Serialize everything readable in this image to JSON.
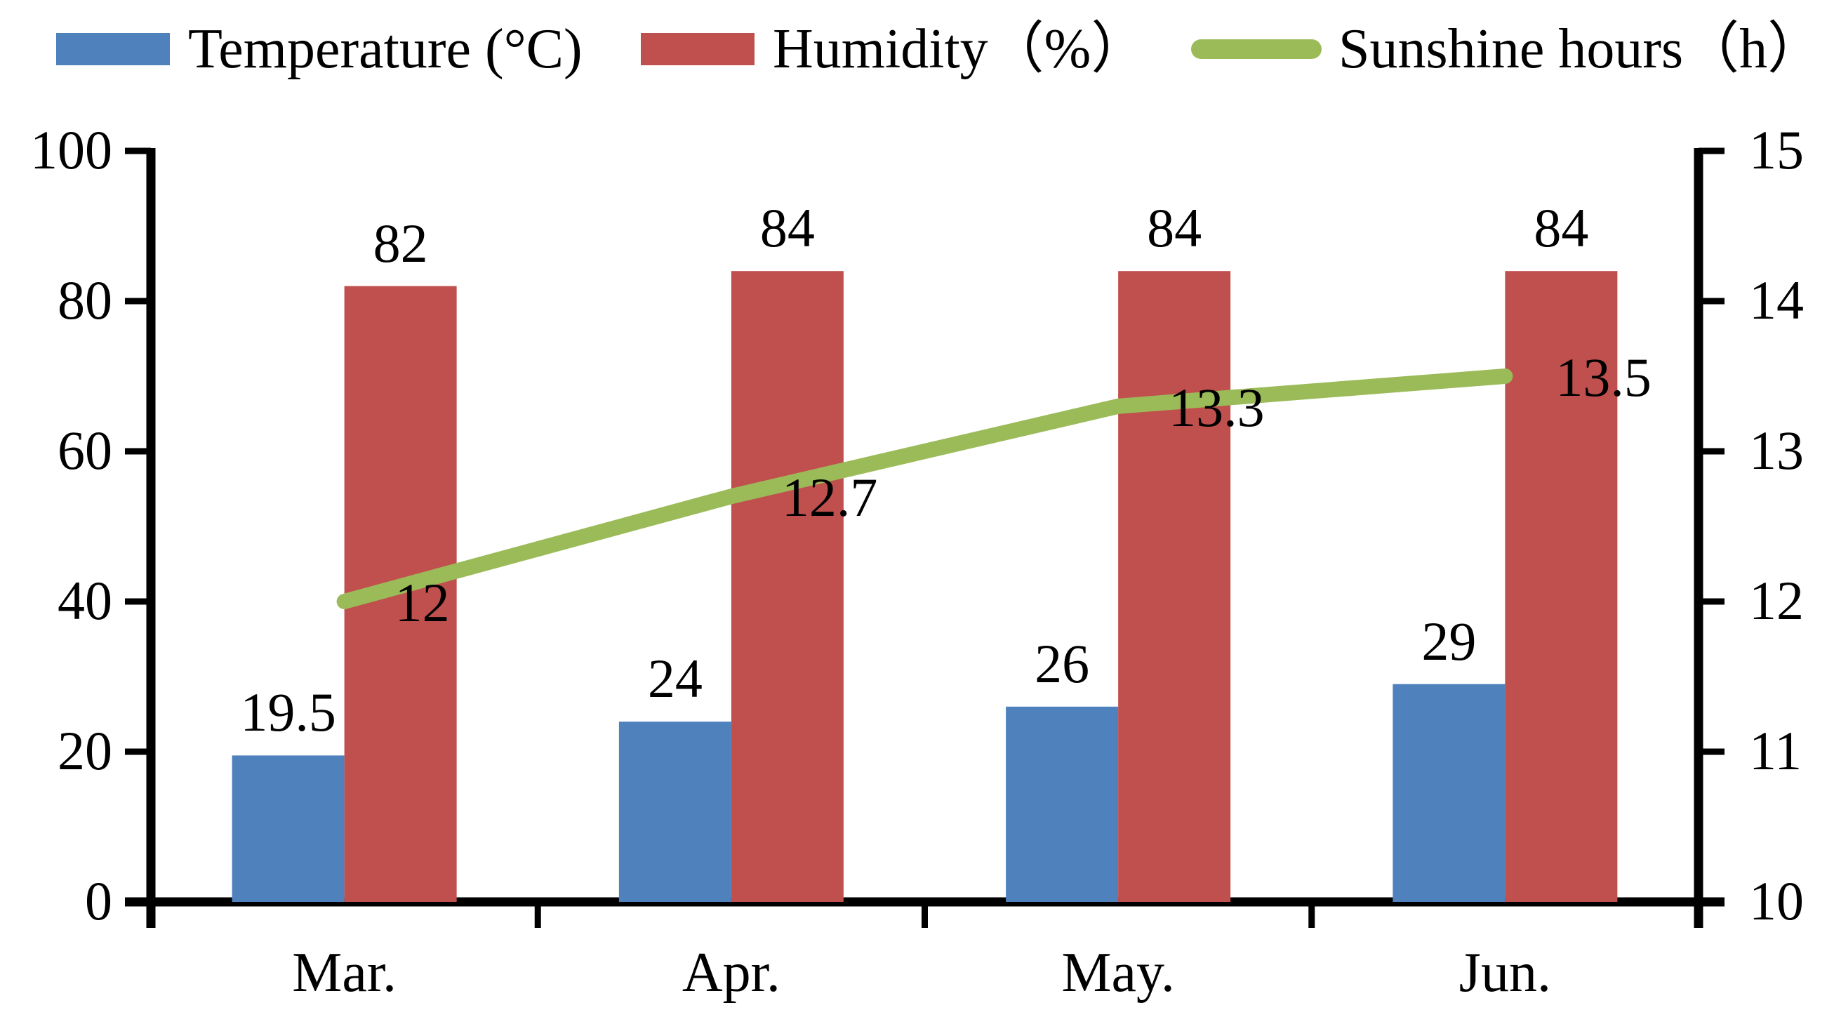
{
  "chart_data": {
    "type": "combo-bar-line",
    "title": "",
    "categories": [
      "Mar.",
      "Apr.",
      "May.",
      "Jun."
    ],
    "series": [
      {
        "name": "Temperature (°C)",
        "type": "bar",
        "axis": "left",
        "color": "#4F81BD",
        "values": [
          19.5,
          24,
          26,
          29
        ],
        "labels": [
          "19.5",
          "24",
          "26",
          "29"
        ]
      },
      {
        "name": "Humidity（%）",
        "type": "bar",
        "axis": "left",
        "color": "#C0504D",
        "values": [
          82,
          84,
          84,
          84
        ],
        "labels": [
          "82",
          "84",
          "84",
          "84"
        ]
      },
      {
        "name": "Sunshine hours（h）",
        "type": "line",
        "axis": "right",
        "color": "#9BBB59",
        "values": [
          12,
          12.7,
          13.3,
          13.5
        ],
        "labels": [
          "12",
          "12.7",
          "13.3",
          "13.5"
        ]
      }
    ],
    "left_axis": {
      "min": 0,
      "max": 100,
      "tick_labels": [
        "0",
        "20",
        "40",
        "60",
        "80",
        "100"
      ]
    },
    "right_axis": {
      "min": 10,
      "max": 15,
      "tick_labels": [
        "10",
        "11",
        "12",
        "13",
        "14",
        "15"
      ]
    },
    "xlabel": "",
    "ylabel": "",
    "grid": false,
    "legend_position": "top",
    "axis_color": "#000000",
    "label_color": "#000000"
  }
}
